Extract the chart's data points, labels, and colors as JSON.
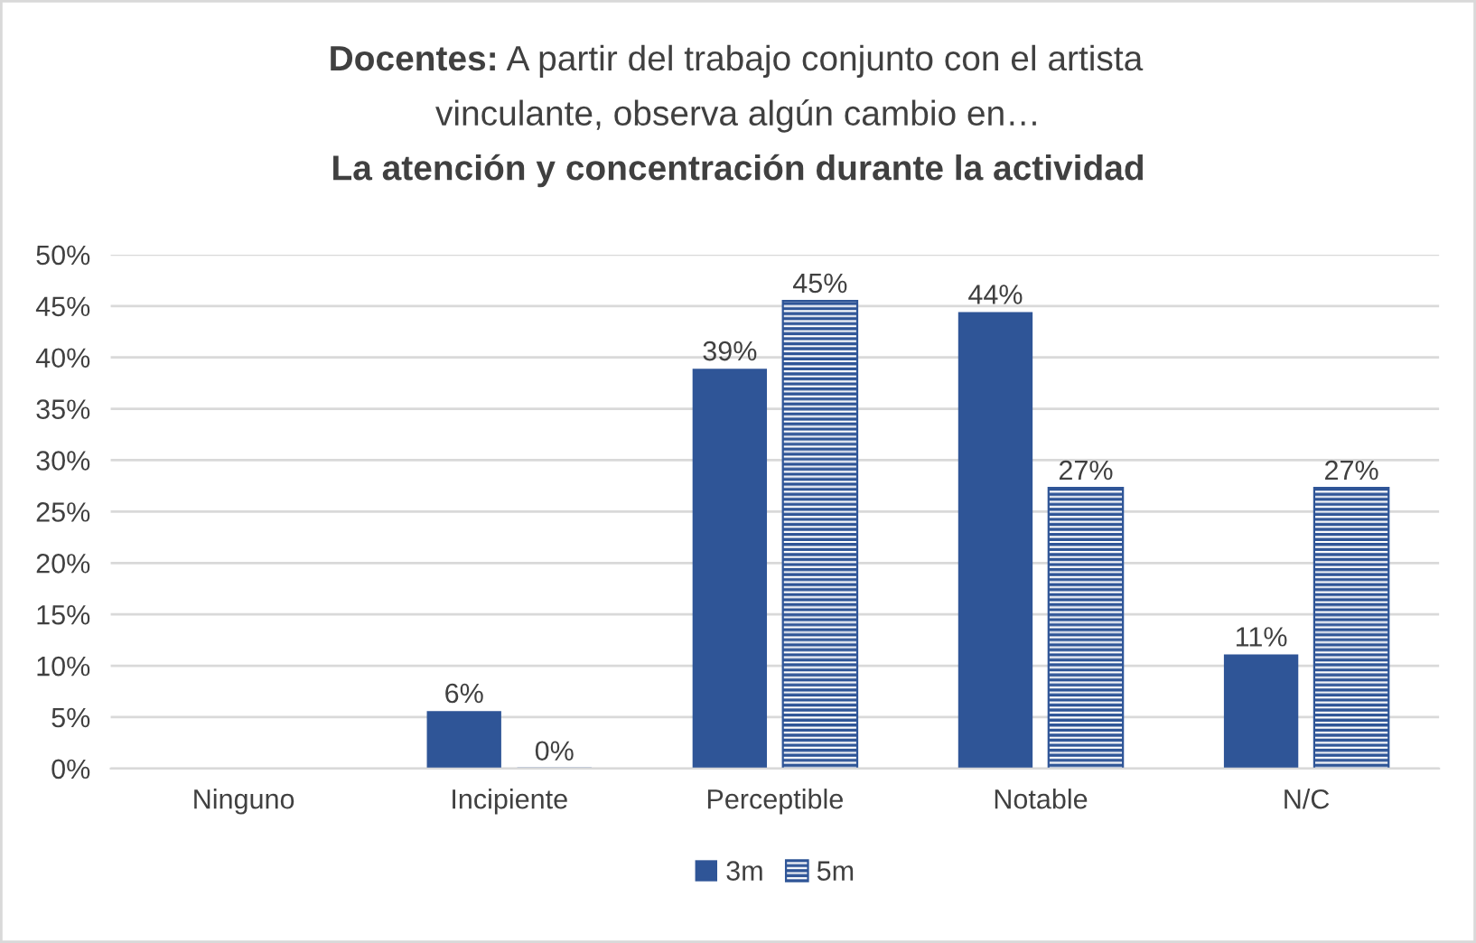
{
  "chart_data": {
    "type": "bar",
    "title": "Docentes: A partir del trabajo conjunto con el artista\nvinculante, observa algún cambio en…\nLa atención y concentración durante la actividad",
    "categories": [
      "Ninguno",
      "Incipiente",
      "Perceptible",
      "Notable",
      "N/C"
    ],
    "series": [
      {
        "name": "3m",
        "color": "#2f5597",
        "values": [
          null,
          5.6,
          38.9,
          44.4,
          11.1
        ],
        "value_labels": [
          null,
          "6%",
          "39%",
          "44%",
          "11%"
        ]
      },
      {
        "name": "5m",
        "color": "#2f5597",
        "values": [
          null,
          0,
          45.5,
          27.3,
          27.3
        ],
        "value_labels": [
          null,
          "0%",
          "45%",
          "27%",
          "27%"
        ]
      }
    ],
    "ylim": [
      0,
      50
    ],
    "yticks": [
      {
        "value": 0,
        "label": "0%"
      },
      {
        "value": 5,
        "label": "5%"
      },
      {
        "value": 10,
        "label": "10%"
      },
      {
        "value": 15,
        "label": "15%"
      },
      {
        "value": 20,
        "label": "20%"
      },
      {
        "value": 25,
        "label": "25%"
      },
      {
        "value": 30,
        "label": "30%"
      },
      {
        "value": 35,
        "label": "35%"
      },
      {
        "value": 40,
        "label": "40%"
      },
      {
        "value": 45,
        "label": "45%"
      },
      {
        "value": 50,
        "label": "50%"
      }
    ],
    "grid": "y",
    "legend": "bottom"
  }
}
